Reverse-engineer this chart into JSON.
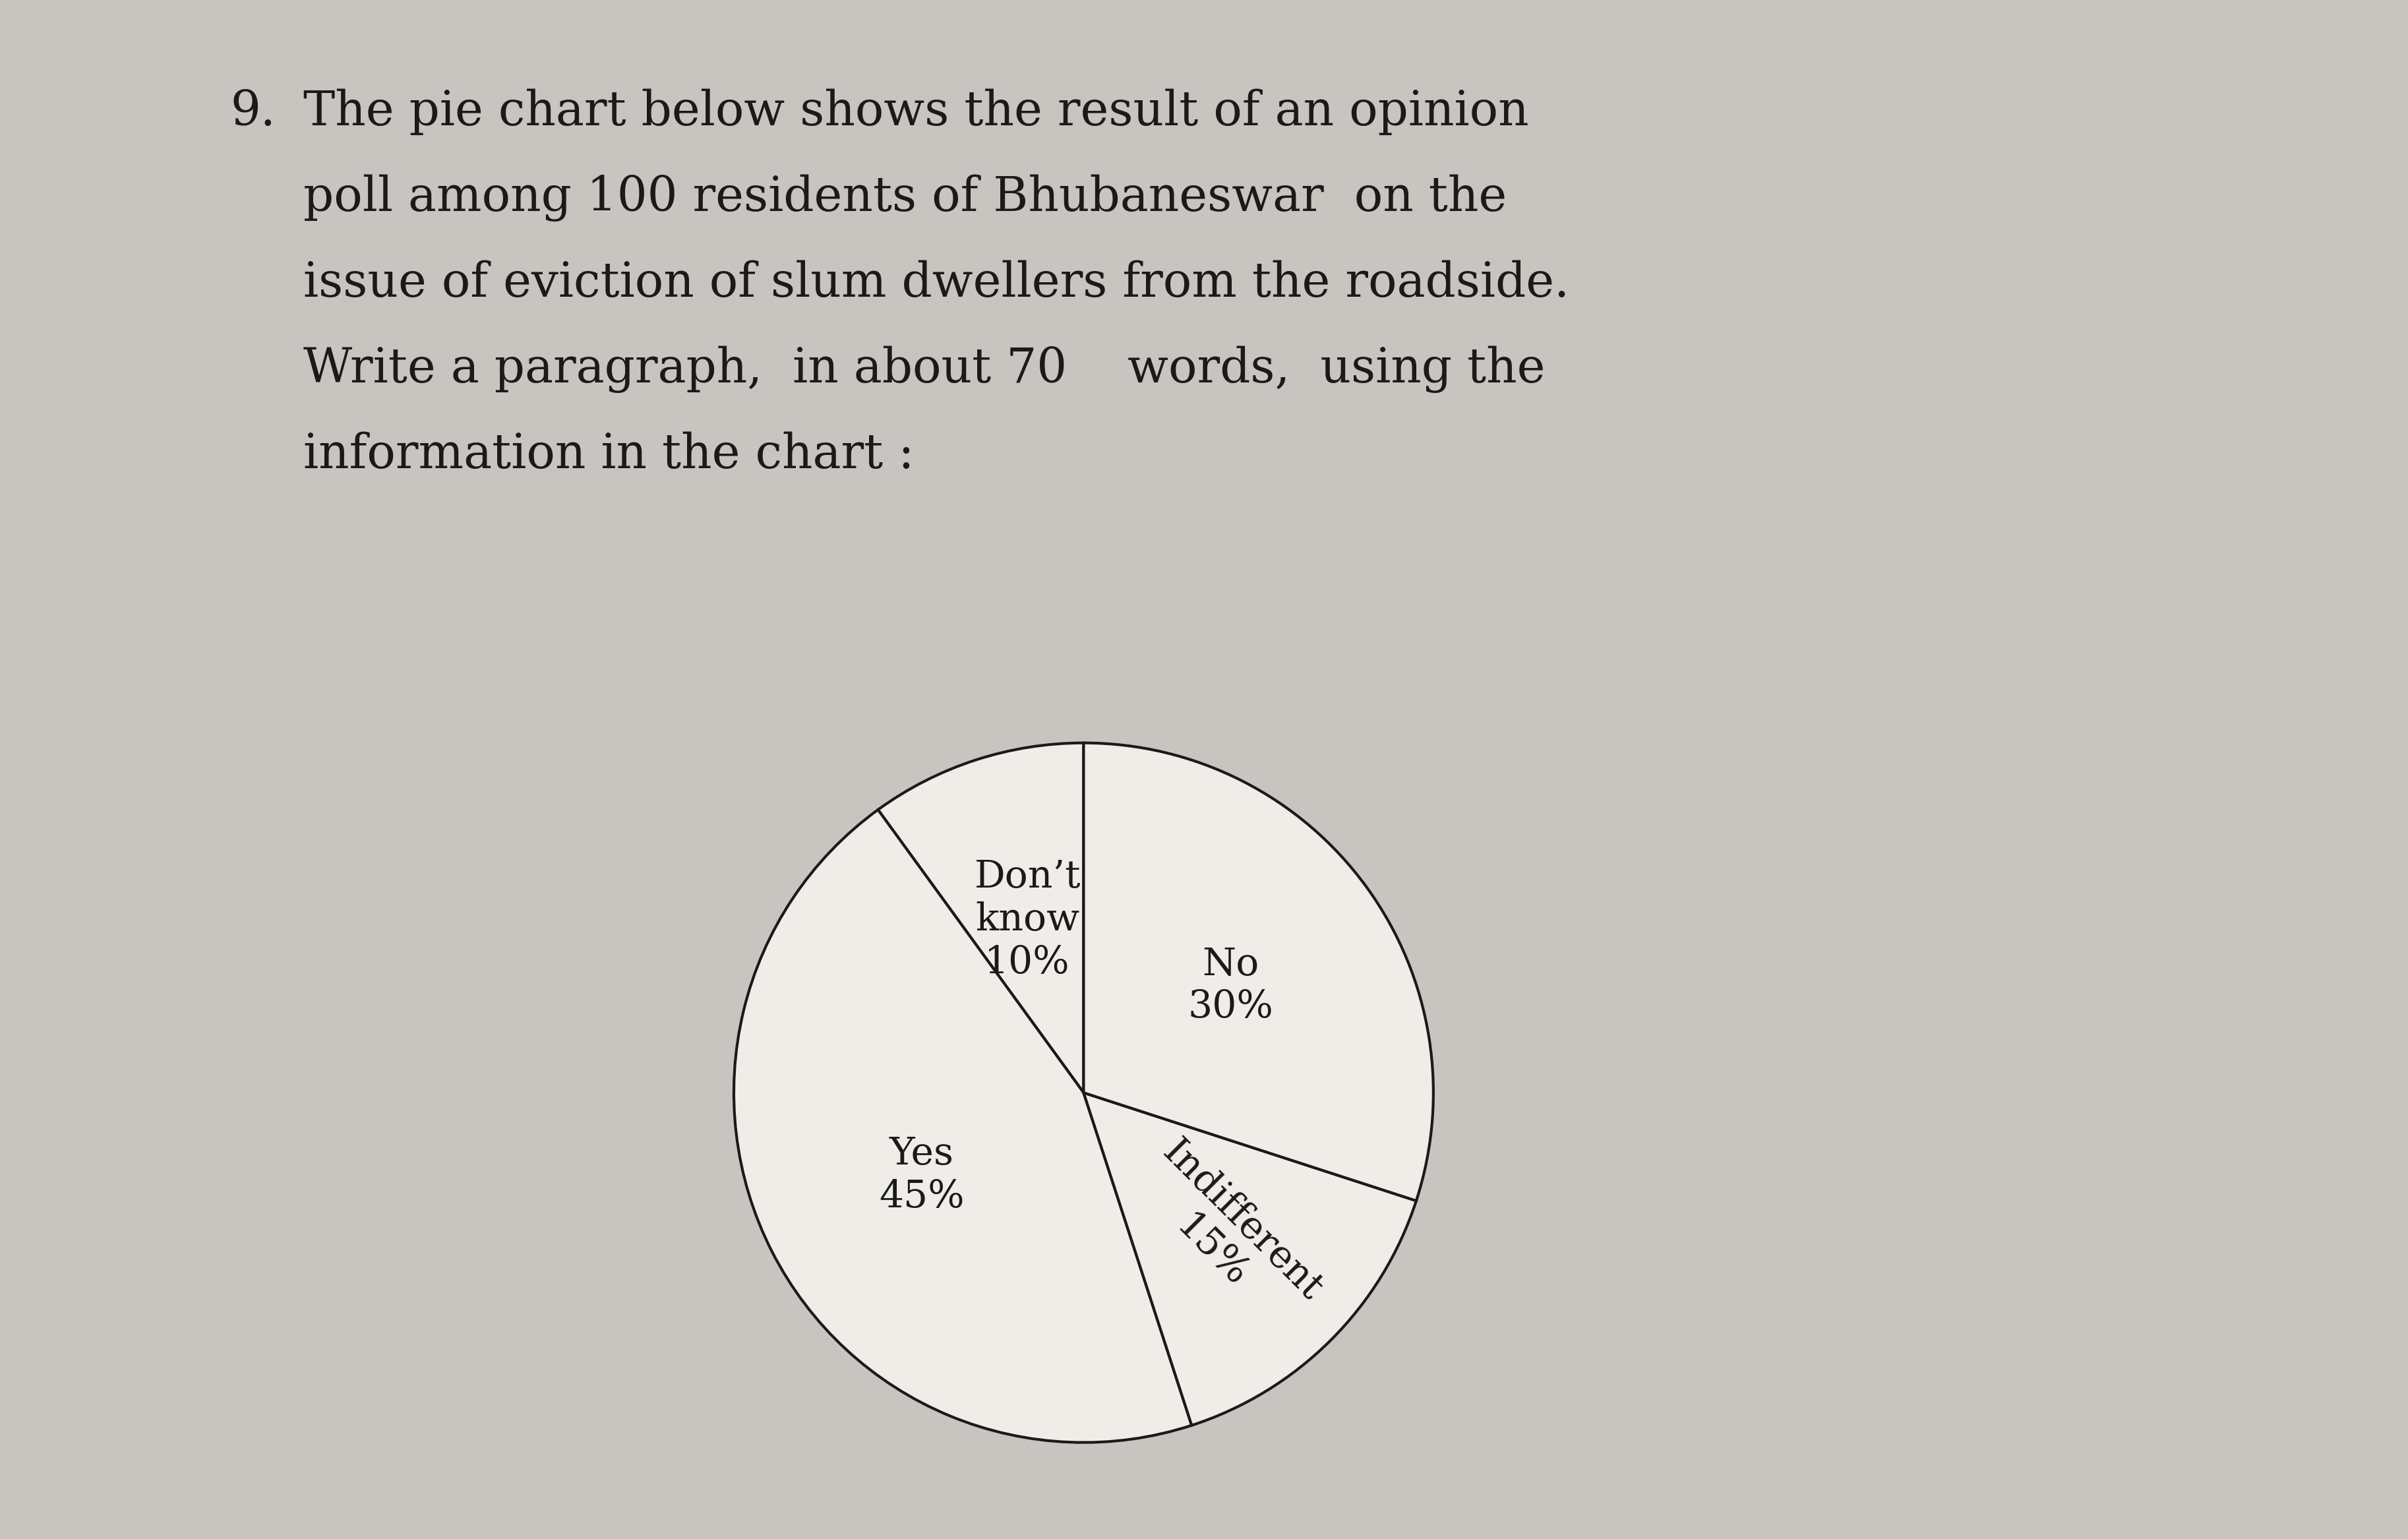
{
  "background_color": "#c8c4bf",
  "question_number": "9.",
  "question_text_lines": [
    "The pie chart below shows the result of an opinion",
    "poll among 100 residents of Bhubaneswar  on the",
    "issue of eviction of slum dwellers from the roadside.",
    "Write a paragraph,  in about 70    words,  using the",
    "information in the chart :"
  ],
  "pie_edge_color": "#1a1a1a",
  "pie_linewidth": 3.0,
  "text_color": "#1a1a1a",
  "question_fontsize": 52,
  "label_fontsize": 42,
  "num_fontsize": 52
}
